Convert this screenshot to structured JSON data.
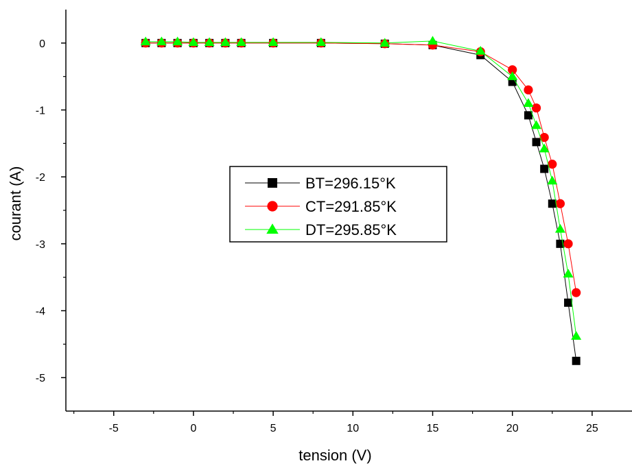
{
  "chart_data": {
    "type": "line",
    "title": "",
    "xlabel": "tension (V)",
    "ylabel": "courant (A)",
    "xlim": [
      -8,
      27.5
    ],
    "ylim": [
      -5.5,
      0.5
    ],
    "xticks": [
      -5,
      0,
      5,
      10,
      15,
      20,
      25
    ],
    "xtick_labels": [
      "-5",
      "0",
      "5",
      "10",
      "15",
      "20",
      "25"
    ],
    "yticks": [
      0,
      -1,
      -2,
      -3,
      -4,
      -5
    ],
    "ytick_labels": [
      "0",
      "-1",
      "-2",
      "-3",
      "-4",
      "-5"
    ],
    "grid": false,
    "legend_position": "center",
    "series": [
      {
        "name": "BT=296.15°K",
        "marker": "square",
        "color": "#000000",
        "x": [
          -3,
          -2,
          -1,
          0,
          1,
          2,
          3,
          5,
          8,
          12,
          15,
          18,
          20,
          21,
          21.5,
          22,
          22.5,
          23,
          23.5,
          24
        ],
        "y": [
          0,
          0,
          0,
          0,
          0,
          0,
          0,
          0,
          0,
          -0.01,
          -0.03,
          -0.18,
          -0.58,
          -1.08,
          -1.48,
          -1.88,
          -2.4,
          -3.0,
          -3.88,
          -4.75
        ]
      },
      {
        "name": "CT=291.85°K",
        "marker": "circle",
        "color": "#ff0000",
        "x": [
          -3,
          -2,
          -1,
          0,
          1,
          2,
          3,
          5,
          8,
          12,
          15,
          18,
          20,
          21,
          21.5,
          22,
          22.5,
          23,
          23.5,
          24
        ],
        "y": [
          0,
          0,
          0,
          0,
          0,
          0,
          0,
          0,
          0,
          -0.01,
          -0.03,
          -0.13,
          -0.4,
          -0.7,
          -0.97,
          -1.41,
          -1.81,
          -2.4,
          -3.0,
          -3.73
        ]
      },
      {
        "name": "DT=295.85°K",
        "marker": "triangle",
        "color": "#00ff00",
        "x": [
          -3,
          -2,
          -1,
          0,
          1,
          2,
          3,
          5,
          8,
          12,
          15,
          18,
          20,
          21,
          21.5,
          22,
          22.5,
          23,
          23.5,
          24
        ],
        "y": [
          0.02,
          0.02,
          0.02,
          0.01,
          0.01,
          0.01,
          0.01,
          0.01,
          0.01,
          0.0,
          0.03,
          -0.12,
          -0.5,
          -0.9,
          -1.23,
          -1.58,
          -2.06,
          -2.78,
          -3.45,
          -4.38
        ]
      }
    ]
  }
}
